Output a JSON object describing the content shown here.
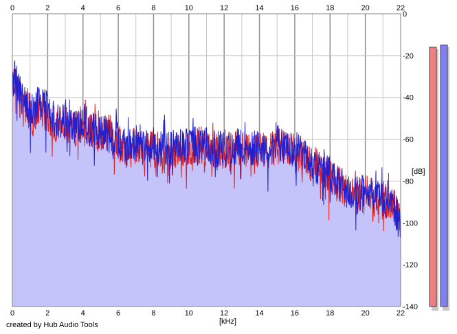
{
  "credit": "created by Hub Audio Tools",
  "chart_data": {
    "type": "area",
    "title": "",
    "xlabel": "[kHz]",
    "ylabel": "[dB]",
    "xlim": [
      0,
      22
    ],
    "ylim": [
      -140,
      0
    ],
    "x_ticks": [
      "0",
      "2",
      "4",
      "6",
      "8",
      "10",
      "12",
      "14",
      "16",
      "18",
      "20",
      "22"
    ],
    "y_ticks": [
      "0",
      "-20",
      "-40",
      "-60",
      "-80",
      "-100",
      "-120",
      "-140"
    ],
    "grid": true,
    "series": [
      {
        "color": "#e02020",
        "x": [
          0,
          0.2,
          0.5,
          0.8,
          1.2,
          1.5,
          2,
          2.5,
          3,
          3.5,
          4,
          4.5,
          5,
          5.5,
          6,
          6.5,
          7,
          7.5,
          8,
          8.5,
          9,
          9.5,
          10,
          10.5,
          11,
          11.5,
          12,
          12.5,
          13,
          13.5,
          14,
          14.5,
          15,
          15.5,
          16,
          16.5,
          17,
          17.5,
          18,
          18.5,
          19,
          19.5,
          20,
          20.5,
          21,
          21.5,
          22
        ],
        "values": [
          -36,
          -33,
          -40,
          -45,
          -50,
          -44,
          -48,
          -53,
          -52,
          -55,
          -52,
          -57,
          -58,
          -56,
          -62,
          -64,
          -63,
          -66,
          -64,
          -65,
          -66,
          -64,
          -65,
          -63,
          -64,
          -66,
          -65,
          -65,
          -64,
          -66,
          -65,
          -67,
          -63,
          -65,
          -66,
          -68,
          -72,
          -74,
          -78,
          -82,
          -86,
          -88,
          -86,
          -88,
          -90,
          -89,
          -100
        ]
      },
      {
        "color": "#2020d0",
        "x": [
          0,
          0.2,
          0.5,
          0.8,
          1.2,
          1.5,
          2,
          2.5,
          3,
          3.5,
          4,
          4.5,
          5,
          5.5,
          6,
          6.5,
          7,
          7.5,
          8,
          8.5,
          9,
          9.5,
          10,
          10.5,
          11,
          11.5,
          12,
          12.5,
          13,
          13.5,
          14,
          14.5,
          15,
          15.5,
          16,
          16.5,
          17,
          17.5,
          18,
          18.5,
          19,
          19.5,
          20,
          20.5,
          21,
          21.5,
          22
        ],
        "values": [
          -34,
          -30,
          -38,
          -44,
          -48,
          -42,
          -46,
          -52,
          -50,
          -53,
          -51,
          -56,
          -57,
          -57,
          -61,
          -62,
          -62,
          -64,
          -63,
          -63,
          -65,
          -63,
          -64,
          -62,
          -63,
          -65,
          -64,
          -64,
          -63,
          -65,
          -64,
          -65,
          -62,
          -64,
          -65,
          -67,
          -71,
          -73,
          -77,
          -81,
          -85,
          -87,
          -85,
          -87,
          -89,
          -88,
          -102
        ]
      }
    ],
    "level_meters": [
      {
        "color": "#f08080",
        "level_db": -10
      },
      {
        "color": "#8080f0",
        "level_db": -9
      }
    ]
  }
}
